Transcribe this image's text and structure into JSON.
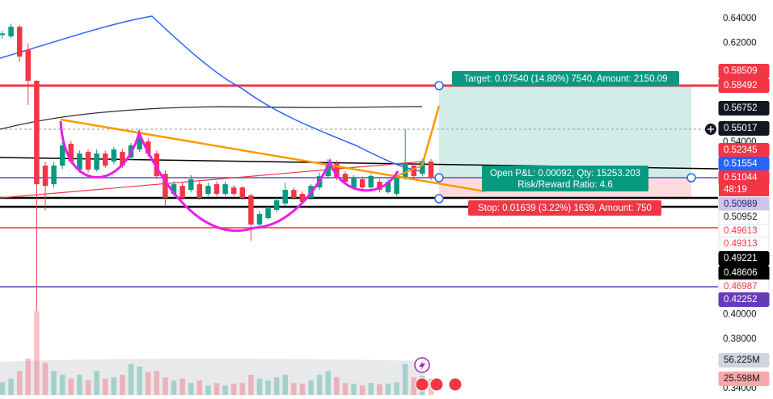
{
  "chart_data": {
    "type": "candlestick",
    "ylim": [
      0.3348,
      0.6551
    ],
    "yticks": [
      {
        "value": 0.64,
        "label": "0.64000"
      },
      {
        "value": 0.62,
        "label": "0.62000"
      },
      {
        "value": 0.54,
        "label": "0.54000"
      },
      {
        "value": 0.4,
        "label": "0.40000"
      },
      {
        "value": 0.38,
        "label": "0.38000"
      },
      {
        "value": 0.34,
        "label": "0.34000"
      }
    ],
    "up_color": "#089981",
    "down_color": "#f23645",
    "open": [
      0.6267,
      0.6256,
      0.6334,
      0.6145,
      0.5896,
      0.5208,
      0.5057,
      0.5208,
      0.5385,
      0.5175,
      0.5319,
      0.5175,
      0.5306,
      0.5241,
      0.5319,
      0.5273,
      0.5339,
      0.5404,
      0.5306,
      0.5142,
      0.4979,
      0.5044,
      0.5011,
      0.5057,
      0.4979,
      0.5057,
      0.4979,
      0.5031,
      0.5031,
      0.4966,
      0.473,
      0.4782,
      0.4848,
      0.49,
      0.5011,
      0.4979,
      0.4946,
      0.5031,
      0.5123,
      0.5228,
      0.5142,
      0.5031,
      0.5097,
      0.5031,
      0.5077,
      0.4992,
      0.4979,
      0.511,
      0.5208,
      0.5142,
      0.5241
    ],
    "high": [
      0.63,
      0.636,
      0.635,
      0.62,
      0.59,
      0.524,
      0.524,
      0.54,
      0.541,
      0.533,
      0.534,
      0.534,
      0.533,
      0.536,
      0.534,
      0.539,
      0.5503,
      0.543,
      0.533,
      0.517,
      0.508,
      0.507,
      0.513,
      0.508,
      0.507,
      0.508,
      0.508,
      0.505,
      0.504,
      0.498,
      0.484,
      0.488,
      0.495,
      0.507,
      0.503,
      0.5,
      0.506,
      0.515,
      0.526,
      0.525,
      0.516,
      0.513,
      0.512,
      0.514,
      0.51,
      0.51,
      0.514,
      0.5503,
      0.523,
      0.526,
      0.526
    ],
    "low": [
      0.624,
      0.624,
      0.605,
      0.57,
      0.4029,
      0.4848,
      0.503,
      0.518,
      0.522,
      0.515,
      0.515,
      0.516,
      0.519,
      0.522,
      0.519,
      0.525,
      0.532,
      0.528,
      0.51,
      0.488,
      0.496,
      0.493,
      0.499,
      0.493,
      0.496,
      0.496,
      0.496,
      0.496,
      0.493,
      0.4599,
      0.471,
      0.477,
      0.483,
      0.488,
      0.493,
      0.49,
      0.493,
      0.501,
      0.51,
      0.509,
      0.506,
      0.501,
      0.501,
      0.501,
      0.499,
      0.498,
      0.496,
      0.509,
      0.51,
      0.512,
      0.509
    ],
    "close": [
      0.628,
      0.6334,
      0.6092,
      0.5896,
      0.5057,
      0.5044,
      0.5208,
      0.5372,
      0.5241,
      0.5306,
      0.5175,
      0.5306,
      0.5208,
      0.5339,
      0.5208,
      0.5372,
      0.5437,
      0.5306,
      0.5123,
      0.4946,
      0.5057,
      0.4946,
      0.5097,
      0.4946,
      0.5044,
      0.4979,
      0.5057,
      0.4979,
      0.4946,
      0.473,
      0.4815,
      0.4861,
      0.4926,
      0.5011,
      0.4946,
      0.4913,
      0.5044,
      0.5123,
      0.5228,
      0.511,
      0.5077,
      0.511,
      0.5031,
      0.5123,
      0.5011,
      0.5077,
      0.5123,
      0.5228,
      0.5123,
      0.5241,
      0.511
    ],
    "volume": [
      20,
      26,
      38,
      58,
      133,
      51,
      38,
      32,
      26,
      32,
      23,
      38,
      26,
      28,
      32,
      49,
      45,
      36,
      38,
      28,
      23,
      26,
      19,
      23,
      15,
      19,
      15,
      18,
      19,
      32,
      26,
      23,
      28,
      32,
      19,
      18,
      23,
      32,
      38,
      28,
      19,
      18,
      15,
      19,
      17,
      18,
      20,
      49,
      28,
      30,
      26
    ],
    "volume_ylim": [
      0,
      627
    ],
    "price_labels": [
      {
        "value": 0.58509,
        "background": "#f23645",
        "text_color": "#ffffff"
      },
      {
        "value": 0.58492,
        "background": "#f23645",
        "text_color": "#ffffff"
      },
      {
        "value": 0.56752,
        "background": "#131722",
        "text_color": "#ffffff"
      },
      {
        "value": 0.55017,
        "background": "#131722",
        "text_color": "#ffffff"
      },
      {
        "value": 0.52345,
        "background": "#f23645",
        "text_color": "#ffffff"
      },
      {
        "value": 0.51554,
        "background": "#2962ff",
        "text_color": "#ffffff"
      },
      {
        "value": 0.51044,
        "background": "#f23645",
        "text_color": "#ffffff"
      },
      {
        "value": 0.50989,
        "background": "#d1c4e9",
        "text_color": "#1a237e"
      },
      {
        "value": 0.50952,
        "background": "#ffffff",
        "text_color": "#131722"
      },
      {
        "value": 0.49613,
        "background": "#ffffff",
        "text_color": "#f23645"
      },
      {
        "value": 0.49313,
        "background": "#ffffff",
        "text_color": "#f23645"
      },
      {
        "value": 0.49221,
        "background": "#000000",
        "text_color": "#ffffff"
      },
      {
        "value": 0.48606,
        "background": "#000000",
        "text_color": "#ffffff"
      },
      {
        "value": 0.46987,
        "background": "#ffffff",
        "text_color": "#f23645"
      },
      {
        "value": 0.42252,
        "background": "#673ab7",
        "text_color": "#ffffff"
      }
    ],
    "countdown": "48:19",
    "volume_labels": [
      {
        "value": 56.225,
        "label": "56.225M",
        "background": "#d1d4dc",
        "text_color": "#131722"
      },
      {
        "value": 25.598,
        "label": "25.598M",
        "background": "#f7a9a9",
        "text_color": "#131722"
      }
    ],
    "position": {
      "target": "Target: 0.07540 (14.80%) 7540, Amount: 2150.09",
      "open_pnl": "Open P&L: 0.00092, Qty: 15253.203",
      "risk_reward": "Risk/Reward Ratio: 4.6",
      "stop": "Stop: 0.01639 (3.22%) 1639, Amount: 750"
    }
  }
}
